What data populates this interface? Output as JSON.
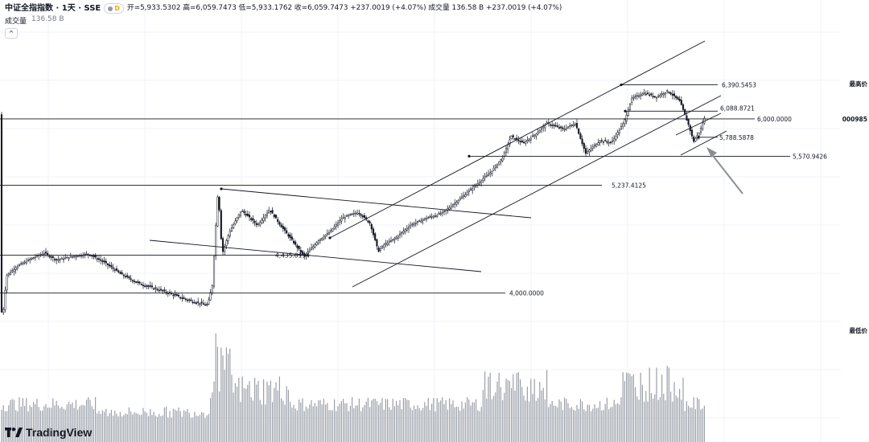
{
  "header": {
    "symbol": "中证全指指数 · 1天 · SSE",
    "interval_badge": "D",
    "ohlc": "开=5,933.5302 高=6,059.7473 低=5,933.1762 收=6,059.7473 +237.0019 (+4.07%) 成交量 136.58 B +237.0019 (+4.07%)"
  },
  "volume_legend": {
    "label": "成交量",
    "value": "136.58 B"
  },
  "right_axis": {
    "max_label": "最高价",
    "min_label": "最低价",
    "symbol_tag": "000985"
  },
  "logo": {
    "text": "TradingView"
  },
  "chart_data": {
    "type": "candlestick",
    "annotations": [
      {
        "label": "6,390.5453",
        "value": 6390.5453
      },
      {
        "label": "6,088.8721",
        "value": 6088.8721
      },
      {
        "label": "6,000.0000",
        "value": 6000.0
      },
      {
        "label": "5,788.5878",
        "value": 5788.5878
      },
      {
        "label": "5,570.9426",
        "value": 5570.9426
      },
      {
        "label": "5,237.4125",
        "value": 5237.4125
      },
      {
        "label": "4,435.0134",
        "value": 4435.0134
      },
      {
        "label": "4,000.0000",
        "value": 4000.0
      }
    ],
    "path_anchors": [
      [
        0,
        3950
      ],
      [
        3,
        3700
      ],
      [
        8,
        4200
      ],
      [
        20,
        4300
      ],
      [
        40,
        4400
      ],
      [
        55,
        4460
      ],
      [
        70,
        4380
      ],
      [
        90,
        4420
      ],
      [
        110,
        4450
      ],
      [
        130,
        4350
      ],
      [
        150,
        4220
      ],
      [
        170,
        4120
      ],
      [
        190,
        4060
      ],
      [
        210,
        4000
      ],
      [
        230,
        3930
      ],
      [
        250,
        3880
      ],
      [
        258,
        3860
      ],
      [
        264,
        4100
      ],
      [
        268,
        4750
      ],
      [
        271,
        5200
      ],
      [
        276,
        4450
      ],
      [
        285,
        4700
      ],
      [
        300,
        4950
      ],
      [
        320,
        4780
      ],
      [
        335,
        4960
      ],
      [
        350,
        4760
      ],
      [
        365,
        4580
      ],
      [
        378,
        4420
      ],
      [
        395,
        4600
      ],
      [
        410,
        4700
      ],
      [
        425,
        4860
      ],
      [
        445,
        4930
      ],
      [
        460,
        4800
      ],
      [
        470,
        4480
      ],
      [
        478,
        4560
      ],
      [
        490,
        4620
      ],
      [
        510,
        4780
      ],
      [
        530,
        4860
      ],
      [
        550,
        4920
      ],
      [
        570,
        5070
      ],
      [
        590,
        5230
      ],
      [
        610,
        5390
      ],
      [
        625,
        5560
      ],
      [
        635,
        5800
      ],
      [
        650,
        5720
      ],
      [
        665,
        5820
      ],
      [
        680,
        5950
      ],
      [
        700,
        5880
      ],
      [
        715,
        5950
      ],
      [
        728,
        5600
      ],
      [
        745,
        5750
      ],
      [
        760,
        5730
      ],
      [
        775,
        5950
      ],
      [
        785,
        6230
      ],
      [
        800,
        6300
      ],
      [
        815,
        6250
      ],
      [
        830,
        6320
      ],
      [
        845,
        6200
      ],
      [
        855,
        5950
      ],
      [
        862,
        5740
      ],
      [
        870,
        5860
      ],
      [
        877,
        6050
      ]
    ]
  }
}
